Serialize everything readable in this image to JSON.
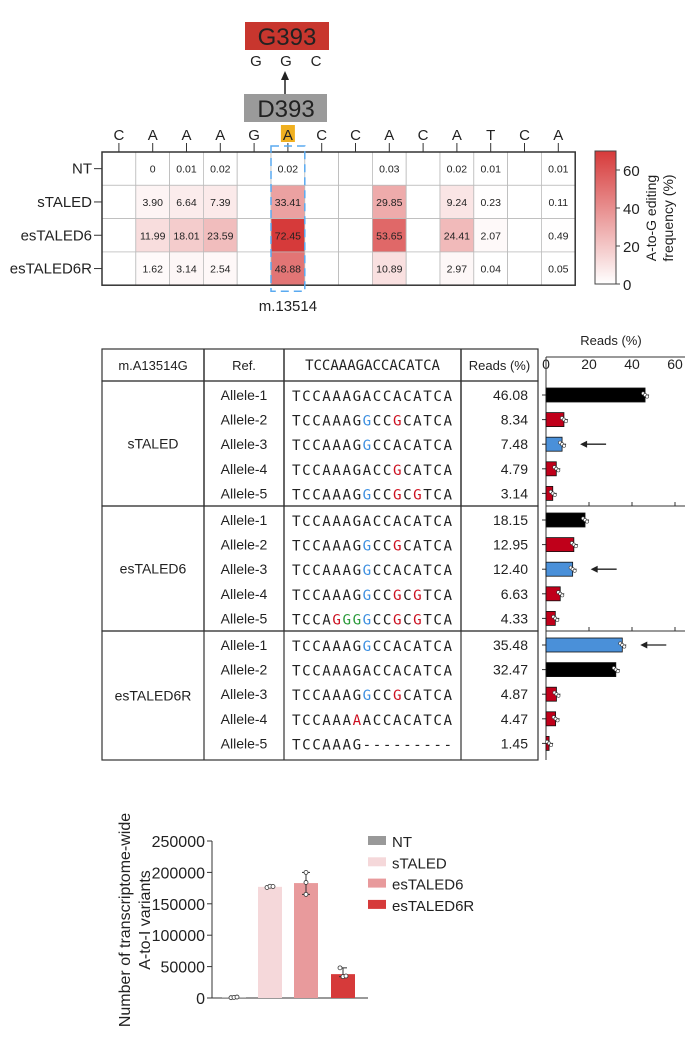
{
  "chart_data": [
    {
      "type": "heatmap",
      "codon_mut": {
        "label": "G393",
        "bases": [
          "G",
          "G",
          "C"
        ],
        "color": "#c8362e"
      },
      "codon_ref": {
        "label": "D393",
        "color": "#9a9a9a"
      },
      "sequence": [
        "C",
        "A",
        "A",
        "A",
        "G",
        "A",
        "C",
        "C",
        "A",
        "C",
        "A",
        "T",
        "C",
        "A"
      ],
      "highlight_index": 5,
      "highlight_color": "#f0b020",
      "position_label": "m.13514",
      "rows": [
        "NT",
        "sTALED",
        "esTALED6",
        "esTALED6R"
      ],
      "values": [
        [
          null,
          0,
          0.01,
          0.02,
          null,
          0.02,
          null,
          null,
          0.03,
          null,
          0.02,
          0.01,
          null,
          0.01
        ],
        [
          null,
          3.9,
          6.64,
          7.39,
          null,
          33.41,
          null,
          null,
          29.85,
          null,
          9.24,
          0.23,
          null,
          0.11
        ],
        [
          null,
          11.99,
          18.01,
          23.59,
          null,
          72.45,
          null,
          null,
          53.65,
          null,
          24.41,
          2.07,
          null,
          0.49
        ],
        [
          null,
          1.62,
          3.14,
          2.54,
          null,
          48.88,
          null,
          null,
          10.89,
          null,
          2.97,
          0.04,
          null,
          0.05
        ]
      ],
      "value_labels": [
        [
          "",
          "0",
          "0.01",
          "0.02",
          "",
          "0.02",
          "",
          "",
          "0.03",
          "",
          "0.02",
          "0.01",
          "",
          "0.01"
        ],
        [
          "",
          "3.90",
          "6.64",
          "7.39",
          "",
          "33.41",
          "",
          "",
          "29.85",
          "",
          "9.24",
          "0.23",
          "",
          "0.11"
        ],
        [
          "",
          "11.99",
          "18.01",
          "23.59",
          "",
          "72.45",
          "",
          "",
          "53.65",
          "",
          "24.41",
          "2.07",
          "",
          "0.49"
        ],
        [
          "",
          "1.62",
          "3.14",
          "2.54",
          "",
          "48.88",
          "",
          "",
          "10.89",
          "",
          "2.97",
          "0.04",
          "",
          "0.05"
        ]
      ],
      "colorbar": {
        "label": "A-to-G editing frequency (%)",
        "ticks": [
          "0",
          "20",
          "40",
          "60"
        ],
        "range": [
          0,
          70
        ],
        "color_low": "#ffffff",
        "color_high": "#d63a3a"
      }
    },
    {
      "type": "table",
      "header": [
        "m.A13514G",
        "Ref.",
        "TCCAAAGACCACATCA",
        "Reads (%)"
      ],
      "groups": [
        {
          "name": "sTALED",
          "alleles": [
            {
              "label": "Allele-1",
              "seq": "TCCAAAGACCACATCA",
              "marks": [],
              "reads": "46.08",
              "value": 46.08,
              "color": "#000000",
              "arrow": false
            },
            {
              "label": "Allele-2",
              "seq": "TCCAAAGGCCGCATCA",
              "marks": [
                [
                  7,
                  "#3d8fe0"
                ],
                [
                  10,
                  "#cc1020"
                ]
              ],
              "reads": "8.34",
              "value": 8.34,
              "color": "#c0001a",
              "arrow": false
            },
            {
              "label": "Allele-3",
              "seq": "TCCAAAGGCCACATCA",
              "marks": [
                [
                  7,
                  "#3d8fe0"
                ]
              ],
              "reads": "7.48",
              "value": 7.48,
              "color": "#4a90d9",
              "arrow": true
            },
            {
              "label": "Allele-4",
              "seq": "TCCAAAGACCGCATCA",
              "marks": [
                [
                  10,
                  "#cc1020"
                ]
              ],
              "reads": "4.79",
              "value": 4.79,
              "color": "#c0001a",
              "arrow": false
            },
            {
              "label": "Allele-5",
              "seq": "TCCAAAGGCCGCGTCA",
              "marks": [
                [
                  7,
                  "#3d8fe0"
                ],
                [
                  10,
                  "#cc1020"
                ],
                [
                  12,
                  "#cc1020"
                ]
              ],
              "reads": "3.14",
              "value": 3.14,
              "color": "#c0001a",
              "arrow": false
            }
          ]
        },
        {
          "name": "esTALED6",
          "alleles": [
            {
              "label": "Allele-1",
              "seq": "TCCAAAGACCACATCA",
              "marks": [],
              "reads": "18.15",
              "value": 18.15,
              "color": "#000000",
              "arrow": false
            },
            {
              "label": "Allele-2",
              "seq": "TCCAAAGGCCGCATCA",
              "marks": [
                [
                  7,
                  "#3d8fe0"
                ],
                [
                  10,
                  "#cc1020"
                ]
              ],
              "reads": "12.95",
              "value": 12.95,
              "color": "#c0001a",
              "arrow": false
            },
            {
              "label": "Allele-3",
              "seq": "TCCAAAGGCCACATCA",
              "marks": [
                [
                  7,
                  "#3d8fe0"
                ]
              ],
              "reads": "12.40",
              "value": 12.4,
              "color": "#4a90d9",
              "arrow": true
            },
            {
              "label": "Allele-4",
              "seq": "TCCAAAGGCCGCGTCA",
              "marks": [
                [
                  7,
                  "#3d8fe0"
                ],
                [
                  10,
                  "#cc1020"
                ],
                [
                  12,
                  "#cc1020"
                ]
              ],
              "reads": "6.63",
              "value": 6.63,
              "color": "#c0001a",
              "arrow": false
            },
            {
              "label": "Allele-5",
              "seq": "TCCAGGGGCCGCGTCA",
              "marks": [
                [
                  4,
                  "#cc1020"
                ],
                [
                  5,
                  "#2a9a3a"
                ],
                [
                  6,
                  "#2a9a3a"
                ],
                [
                  7,
                  "#3d8fe0"
                ],
                [
                  10,
                  "#cc1020"
                ],
                [
                  12,
                  "#cc1020"
                ]
              ],
              "reads": "4.33",
              "value": 4.33,
              "color": "#c0001a",
              "arrow": false
            }
          ]
        },
        {
          "name": "esTALED6R",
          "alleles": [
            {
              "label": "Allele-1",
              "seq": "TCCAAAGGCCACATCA",
              "marks": [
                [
                  7,
                  "#3d8fe0"
                ]
              ],
              "reads": "35.48",
              "value": 35.48,
              "color": "#4a90d9",
              "arrow": true
            },
            {
              "label": "Allele-2",
              "seq": "TCCAAAGACCACATCA",
              "marks": [],
              "reads": "32.47",
              "value": 32.47,
              "color": "#000000",
              "arrow": false
            },
            {
              "label": "Allele-3",
              "seq": "TCCAAAGGCCGCATCA",
              "marks": [
                [
                  7,
                  "#3d8fe0"
                ],
                [
                  10,
                  "#cc1020"
                ]
              ],
              "reads": "4.87",
              "value": 4.87,
              "color": "#c0001a",
              "arrow": false
            },
            {
              "label": "Allele-4",
              "seq": "TCCAAAAACCACATCA",
              "marks": [
                [
                  6,
                  "#cc1020"
                ]
              ],
              "reads": "4.47",
              "value": 4.47,
              "color": "#c0001a",
              "arrow": false
            },
            {
              "label": "Allele-5",
              "seq": "TCCAAAG---------",
              "marks": [],
              "reads": "1.45",
              "value": 1.45,
              "color": "#c0001a",
              "arrow": false
            }
          ]
        }
      ],
      "bar_axis": {
        "label": "Reads (%)",
        "ticks": [
          "0",
          "20",
          "40",
          "60"
        ],
        "range": [
          0,
          60
        ]
      }
    },
    {
      "type": "bar",
      "categories": [
        "NT",
        "sTALED",
        "esTALED6",
        "esTALED6R"
      ],
      "values": [
        1000,
        177000,
        183000,
        38000
      ],
      "points": [
        [
          500,
          1000,
          1500
        ],
        [
          176000,
          178000,
          177500
        ],
        [
          200000,
          184000,
          165000
        ],
        [
          48000,
          34000,
          35000
        ]
      ],
      "colors": [
        "#999999",
        "#f5d8da",
        "#e89a9c",
        "#d63a3a"
      ],
      "ylabel": [
        "Number of transcriptome-wide",
        "A-to-I variants"
      ],
      "ylim": [
        0,
        250000
      ],
      "yticks": [
        "0",
        "50000",
        "100000",
        "150000",
        "200000",
        "250000"
      ],
      "legend": [
        "NT",
        "sTALED",
        "esTALED6",
        "esTALED6R"
      ],
      "legend_position": "right"
    }
  ]
}
